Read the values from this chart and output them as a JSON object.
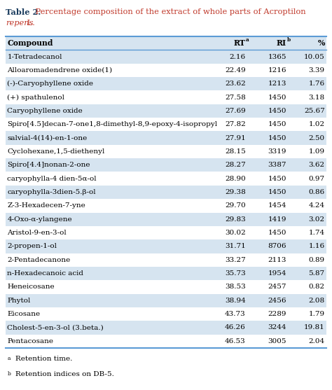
{
  "title_bold": "Table 2.",
  "title_rest": " Percentage composition of the extract of whole parts of Acroptilon",
  "title_line2_italic": "repens",
  "title_line2_rest": " L.",
  "header": [
    "Compound",
    "RT",
    "RI",
    "%"
  ],
  "header_sups": [
    "",
    "a",
    "b",
    ""
  ],
  "rows": [
    [
      "1-Tetradecanol",
      "2.16",
      "1365",
      "10.05"
    ],
    [
      "Alloaromadendrene oxide(1)",
      "22.49",
      "1216",
      "3.39"
    ],
    [
      "(-)-Caryophyllene oxide",
      "23.62",
      "1213",
      "1.76"
    ],
    [
      "(+) spathulenol",
      "27.58",
      "1450",
      "3.18"
    ],
    [
      "Caryophyllene oxide",
      "27.69",
      "1450",
      "25.67"
    ],
    [
      "Spiro[4.5]decan-7-one1,8-dimethyl-8,9-epoxy-4-isopropyl",
      "27.82",
      "1450",
      "1.02"
    ],
    [
      "salvial-4(14)-en-1-one",
      "27.91",
      "1450",
      "2.50"
    ],
    [
      "Cyclohexane,1,5-diethenyl",
      "28.15",
      "3319",
      "1.09"
    ],
    [
      "Spiro[4.4]nonan-2-one",
      "28.27",
      "3387",
      "3.62"
    ],
    [
      "caryophylla-4 dien-5α-ol",
      "28.90",
      "1450",
      "0.97"
    ],
    [
      "caryophylla-3dien-5.β-ol",
      "29.38",
      "1450",
      "0.86"
    ],
    [
      "Z-3-Hexadecen-7-yne",
      "29.70",
      "1454",
      "4.24"
    ],
    [
      "4-Oxo-α-ylangene",
      "29.83",
      "1419",
      "3.02"
    ],
    [
      "Aristol-9-en-3-ol",
      "30.02",
      "1450",
      "1.74"
    ],
    [
      "2-propen-1-ol",
      "31.71",
      "8706",
      "1.16"
    ],
    [
      "2-Pentadecanone",
      "33.27",
      "2113",
      "0.89"
    ],
    [
      "n-Hexadecanoic acid",
      "35.73",
      "1954",
      "5.87"
    ],
    [
      "Heneicosane",
      "38.53",
      "2457",
      "0.82"
    ],
    [
      "Phytol",
      "38.94",
      "2456",
      "2.08"
    ],
    [
      "Eicosane",
      "43.73",
      "2289",
      "1.79"
    ],
    [
      "Cholest-5-en-3-ol (3.beta.)",
      "46.26",
      "3244",
      "19.81"
    ],
    [
      "Pentacosane",
      "46.53",
      "3005",
      "2.04"
    ]
  ],
  "footnotes": [
    [
      "a",
      "Retention time."
    ],
    [
      "b",
      "Retention indices on DB-5."
    ]
  ],
  "bg_light": "#d6e4f0",
  "bg_white": "#ffffff",
  "title_bold_color": "#1a3c5e",
  "title_rest_color": "#c0392b",
  "line_color": "#5b9bd5",
  "font_size": 7.5,
  "header_font_size": 7.8,
  "title_font_size": 8.2
}
